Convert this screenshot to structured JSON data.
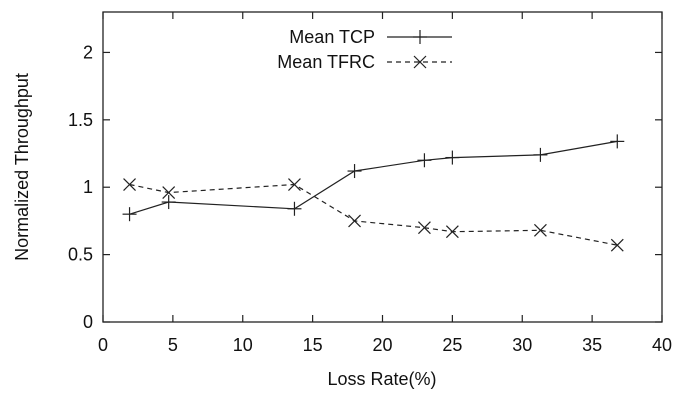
{
  "chart_data": {
    "type": "line",
    "xlabel": "Loss Rate(%)",
    "ylabel": "Normalized Throughput",
    "xlim": [
      0,
      40
    ],
    "ylim": [
      0,
      2.3
    ],
    "xticks": [
      0,
      5,
      10,
      15,
      20,
      25,
      30,
      35,
      40
    ],
    "yticks": [
      0,
      0.5,
      1,
      1.5,
      2
    ],
    "xtick_labels": [
      "0",
      "5",
      "10",
      "15",
      "20",
      "25",
      "30",
      "35",
      "40"
    ],
    "ytick_labels": [
      "0",
      "0.5",
      "1",
      "1.5",
      "2"
    ],
    "grid": false,
    "legend_position": "top-center",
    "series": [
      {
        "name": "Mean TCP",
        "line_style": "solid",
        "marker": "plus",
        "x": [
          1.9,
          4.7,
          13.7,
          18.0,
          23.0,
          25.0,
          31.3,
          36.8
        ],
        "y": [
          0.8,
          0.89,
          0.84,
          1.12,
          1.2,
          1.22,
          1.24,
          1.34
        ]
      },
      {
        "name": "Mean TFRC",
        "line_style": "dashed",
        "marker": "cross",
        "x": [
          1.9,
          4.7,
          13.7,
          18.0,
          23.0,
          25.0,
          31.3,
          36.8
        ],
        "y": [
          1.02,
          0.96,
          1.02,
          0.75,
          0.7,
          0.67,
          0.68,
          0.57
        ]
      }
    ]
  }
}
